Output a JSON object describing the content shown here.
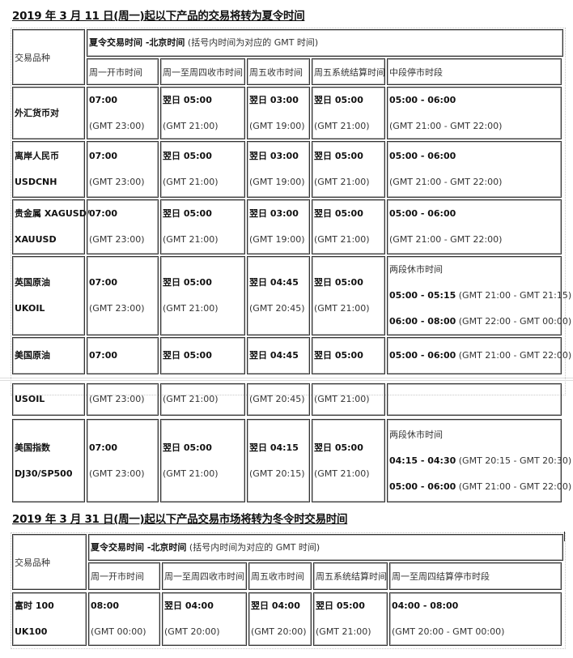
{
  "tables": [
    {
      "title": "2019 年 3 月 11 日(周一)起以下产品的交易将转为夏令时间",
      "product_header": "交易品种",
      "group_header": {
        "b": "夏令交易时间  -北京时间",
        "t": " (括号内时间为对应的 GMT 时间)"
      },
      "columns": [
        "周一开市时间",
        "周一至周四收市时间",
        "周五收市时间",
        "周五系统结算时间",
        "中段停市时段"
      ],
      "rows": [
        {
          "product": [
            {
              "b": "外汇货币对"
            }
          ],
          "cells": [
            [
              {
                "b": "07:00"
              },
              {
                "t": "(GMT 23:00)"
              }
            ],
            [
              {
                "b": "翌日 05:00"
              },
              {
                "t": "(GMT 21:00)"
              }
            ],
            [
              {
                "b": "翌日 03:00"
              },
              {
                "t": "(GMT 19:00)"
              }
            ],
            [
              {
                "b": "翌日 05:00"
              },
              {
                "t": "(GMT 21:00)"
              }
            ],
            [
              {
                "b": "05:00 - 06:00"
              },
              {
                "t": "(GMT 21:00 - GMT 22:00)"
              }
            ]
          ]
        },
        {
          "product": [
            {
              "b": "离岸人民币"
            },
            {
              "b": "USDCNH"
            }
          ],
          "cells": [
            [
              {
                "b": "07:00"
              },
              {
                "t": "(GMT 23:00)"
              }
            ],
            [
              {
                "b": "翌日 05:00"
              },
              {
                "t": "  (GMT 21:00)"
              }
            ],
            [
              {
                "b": "翌日 03:00"
              },
              {
                "t": "(GMT 19:00)"
              }
            ],
            [
              {
                "b": "翌日 05:00"
              },
              {
                "t": "(GMT 21:00)"
              }
            ],
            [
              {
                "b": "05:00 - 06:00"
              },
              {
                "t": "(GMT 21:00 - GMT 22:00)"
              }
            ]
          ]
        },
        {
          "product": [
            {
              "b": "贵金属 XAGUSD/"
            },
            {
              "b": "XAUUSD"
            }
          ],
          "cells": [
            [
              {
                "b": "07:00"
              },
              {
                "t": "(GMT 23:00)"
              }
            ],
            [
              {
                "b": "翌日 05:00"
              },
              {
                "t": "(GMT 21:00)"
              }
            ],
            [
              {
                "b": "翌日 03:00"
              },
              {
                "t": "(GMT 19:00)"
              }
            ],
            [
              {
                "b": "翌日 05:00"
              },
              {
                "t": "(GMT 21:00)"
              }
            ],
            [
              {
                "b": "05:00 - 06:00"
              },
              {
                "t": "(GMT 21:00 - GMT 22:00)"
              }
            ]
          ]
        },
        {
          "product": [
            {
              "b": "英国原油"
            },
            {
              "b": "UKOIL"
            }
          ],
          "cells": [
            [
              {
                "b": "07:00"
              },
              {
                "t": "(GMT 23:00)"
              }
            ],
            [
              {
                "b": "翌日  05:00"
              },
              {
                "t": "(GMT 21:00)"
              }
            ],
            [
              {
                "b": "翌日  04:45"
              },
              {
                "t": "(GMT 20:45)"
              }
            ],
            [
              {
                "b": "翌日 05:00"
              },
              {
                "t": "(GMT 21:00)"
              }
            ],
            [
              {
                "t": "两段休市时间"
              },
              {
                "b": "05:00 - 05:15",
                "t": " (GMT 21:00 - GMT 21:15)"
              },
              {
                "b": "06:00 - 08:00",
                "t": " (GMT 22:00 - GMT 00:00)"
              }
            ]
          ]
        },
        {
          "product": [
            {
              "b": "美国原油"
            }
          ],
          "cells": [
            [
              {
                "b": "07:00"
              }
            ],
            [
              {
                "b": "翌日  05:00"
              }
            ],
            [
              {
                "b": "翌日  04:45"
              }
            ],
            [
              {
                "b": "翌日 05:00"
              }
            ],
            [
              {
                "b": "05:00 - 06:00",
                "t": " (GMT 21:00 - GMT 22:00)"
              }
            ]
          ]
        },
        {
          "product": [
            {
              "b": "USOIL"
            }
          ],
          "cells": [
            [
              {
                "t": "(GMT 23:00)"
              }
            ],
            [
              {
                "t": "(GMT 21:00)"
              }
            ],
            [
              {
                "t": "(GMT 20:45)"
              }
            ],
            [
              {
                "t": "(GMT 21:00)"
              }
            ],
            []
          ]
        },
        {
          "product": [
            {
              "b": "美国指数"
            },
            {
              "b": "DJ30/SP500"
            }
          ],
          "cells": [
            [
              {
                "b": "07:00"
              },
              {
                "t": "(GMT 23:00)"
              }
            ],
            [
              {
                "b": "翌日  05:00"
              },
              {
                "t": "(GMT 21:00)"
              }
            ],
            [
              {
                "b": "翌日  04:15"
              },
              {
                "t": "(GMT 20:15)"
              }
            ],
            [
              {
                "b": "翌日 05:00"
              },
              {
                "t": "(GMT 21:00)"
              }
            ],
            [
              {
                "t": "两段休市时间"
              },
              {
                "b": "04:15 - 04:30",
                "t": " (GMT 20:15 - GMT 20:30)"
              },
              {
                "b": "05:00 - 06:00",
                "t": " (GMT 21:00 - GMT 22:00)"
              }
            ]
          ]
        }
      ]
    },
    {
      "title": "2019 年 3 月 31 日(周一)起以下产品交易市场将转为冬令时交易时间",
      "product_header": "交易品种",
      "group_header": {
        "b": "夏令交易时间  -北京时间",
        "t": " (括号内时间为对应的 GMT 时间)"
      },
      "columns": [
        "周一开市时间",
        "周一至周四收市时间",
        "周五收市时间",
        "周五系统结算时间",
        "周一至周四结算停市时段"
      ],
      "rows": [
        {
          "product": [
            {
              "b": "富时 100"
            },
            {
              "b": "UK100"
            }
          ],
          "cells": [
            [
              {
                "b": "08:00"
              },
              {
                "t": "(GMT 00:00)"
              }
            ],
            [
              {
                "b": "翌日  04:00"
              },
              {
                "t": "(GMT 20:00)"
              }
            ],
            [
              {
                "b": "翌日  04:00"
              },
              {
                "t": "(GMT 20:00)"
              }
            ],
            [
              {
                "b": "翌日 05:00"
              },
              {
                "t": "(GMT 21:00)"
              }
            ],
            [
              {
                "b": "04:00 - 08:00"
              },
              {
                "t": "(GMT 20:00 - GMT 00:00)"
              }
            ]
          ]
        }
      ]
    }
  ]
}
